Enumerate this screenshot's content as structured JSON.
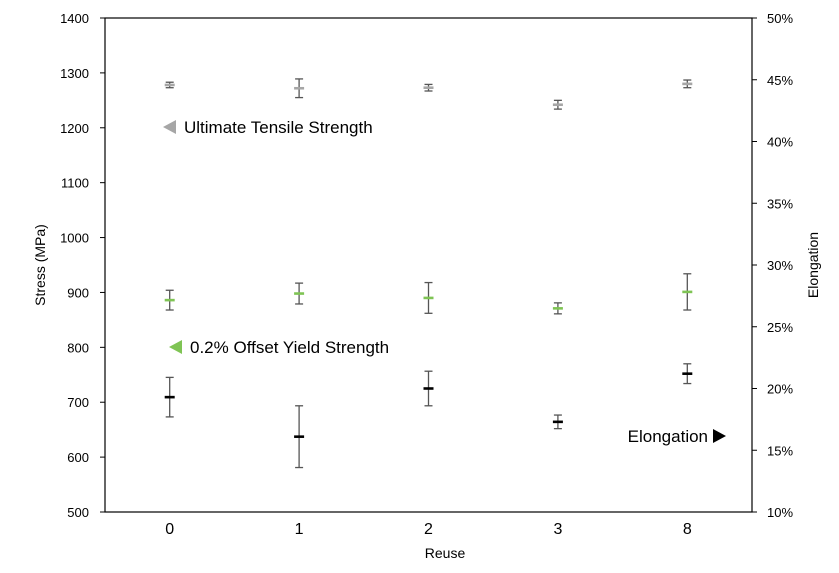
{
  "chart_data": {
    "type": "scatter",
    "title": "",
    "xlabel": "Reuse",
    "ylabel": "Stress (MPa)",
    "y2label": "Elongation",
    "categories": [
      "0",
      "1",
      "2",
      "3",
      "8"
    ],
    "ylim": [
      500,
      1400
    ],
    "yticks": [
      500,
      600,
      700,
      800,
      900,
      1000,
      1100,
      1200,
      1300,
      1400
    ],
    "y2lim": [
      10,
      50
    ],
    "y2ticks": [
      "10%",
      "15%",
      "20%",
      "25%",
      "30%",
      "35%",
      "40%",
      "45%",
      "50%"
    ],
    "grid": false,
    "legend_position": "inline annotations",
    "series": [
      {
        "name": "Ultimate Tensile Strength",
        "axis": "left",
        "color": "#a6a6a6",
        "marker": "dash",
        "values": [
          1278,
          1272,
          1273,
          1242,
          1280
        ],
        "errors": [
          5,
          17,
          6,
          8,
          7
        ]
      },
      {
        "name": "0.2% Offset Yield Strength",
        "axis": "left",
        "color": "#7fc454",
        "marker": "dash",
        "values": [
          886,
          898,
          890,
          871,
          901
        ],
        "errors": [
          18,
          19,
          28,
          10,
          33
        ]
      },
      {
        "name": "Elongation",
        "axis": "right",
        "unit": "%",
        "color": "#000000",
        "marker": "dash",
        "values": [
          19.3,
          16.1,
          20.0,
          17.3,
          21.2
        ],
        "errors": [
          1.6,
          2.5,
          1.4,
          0.55,
          0.8
        ]
      }
    ],
    "annotations": [
      {
        "text": "Ultimate Tensile Strength",
        "arrow": "left",
        "color": "#a6a6a6"
      },
      {
        "text": "0.2% Offset Yield Strength",
        "arrow": "left",
        "color": "#7fc454"
      },
      {
        "text": "Elongation",
        "arrow": "right",
        "color": "#000000"
      }
    ]
  }
}
